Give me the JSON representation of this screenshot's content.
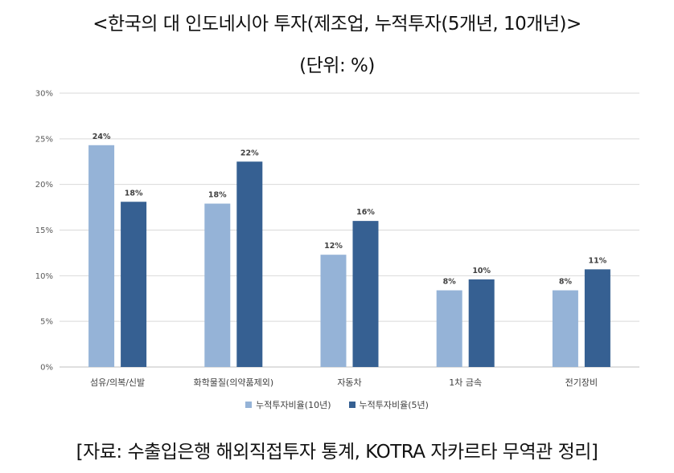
{
  "title": "<한국의 대 인도네시아 투자(제조업, 누적투자(5개년, 10개년)>",
  "unit_label": "(단위: %)",
  "source": "[자료: 수출입은행 해외직접투자 통계, KOTRA 자카르타 무역관 정리]",
  "colors": {
    "series1": "#95b3d7",
    "series2": "#366092",
    "grid": "#d9d9d9",
    "axis": "#bfbfbf"
  },
  "chart_data": {
    "type": "bar",
    "categories": [
      "섬유/의복/신발",
      "화학물질(의약품제외)",
      "자동차",
      "1차 금속",
      "전기장비"
    ],
    "series": [
      {
        "name": "누적투자비율(10년)",
        "values": [
          24.3,
          17.9,
          12.3,
          8.4,
          8.4
        ],
        "labels": [
          "24%",
          "18%",
          "12%",
          "8%",
          "8%"
        ]
      },
      {
        "name": "누적투자비율(5년)",
        "values": [
          18.1,
          22.5,
          16.0,
          9.6,
          10.7
        ],
        "labels": [
          "18%",
          "22%",
          "16%",
          "10%",
          "11%"
        ]
      }
    ],
    "y_ticks": [
      "0%",
      "5%",
      "10%",
      "15%",
      "20%",
      "25%",
      "30%"
    ],
    "ylim": [
      0,
      30
    ],
    "grid": true,
    "legend_position": "bottom"
  }
}
